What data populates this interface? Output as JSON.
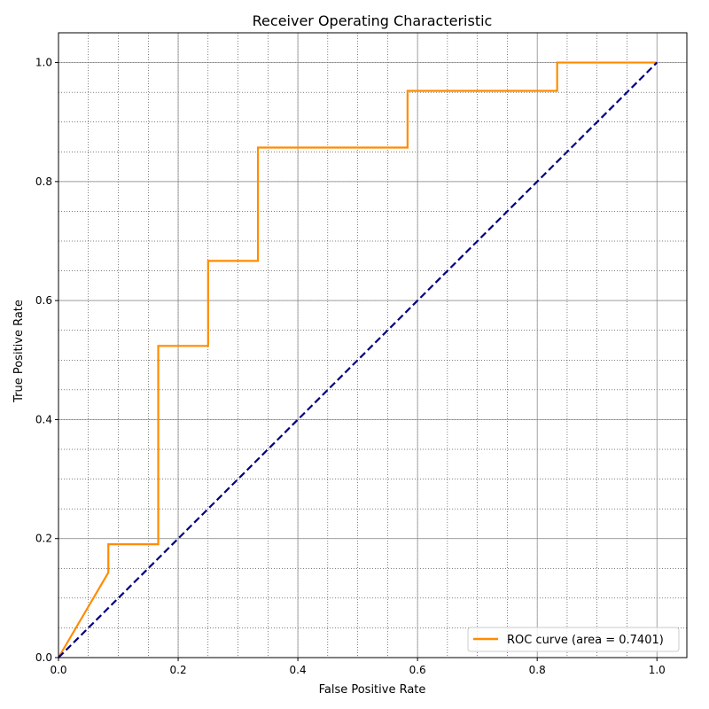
{
  "chart_data": {
    "type": "line",
    "title": "Receiver Operating Characteristic",
    "xlabel": "False Positive Rate",
    "ylabel": "True Positive Rate",
    "xlim": [
      0.0,
      1.05
    ],
    "ylim": [
      0.0,
      1.05
    ],
    "major_ticks": [
      0.0,
      0.2,
      0.4,
      0.6,
      0.8,
      1.0
    ],
    "tick_labels": [
      "0.0",
      "0.2",
      "0.4",
      "0.6",
      "0.8",
      "1.0"
    ],
    "minor_step": 0.05,
    "grid": true,
    "legend_position": "lower-right",
    "series": [
      {
        "name": "ROC curve (area = 0.7401)",
        "color": "#ff8c00",
        "style": "solid",
        "x": [
          0.0,
          0.0833,
          0.0833,
          0.1667,
          0.1667,
          0.25,
          0.25,
          0.3333,
          0.3333,
          0.5833,
          0.5833,
          0.8333,
          0.8333,
          1.0
        ],
        "y": [
          0.0,
          0.1429,
          0.1905,
          0.1905,
          0.5238,
          0.5238,
          0.6667,
          0.6667,
          0.8571,
          0.8571,
          0.9524,
          0.9524,
          1.0,
          1.0
        ]
      },
      {
        "color": "#000080",
        "style": "dashed",
        "x": [
          0.0,
          1.0
        ],
        "y": [
          0.0,
          1.0
        ]
      }
    ]
  }
}
